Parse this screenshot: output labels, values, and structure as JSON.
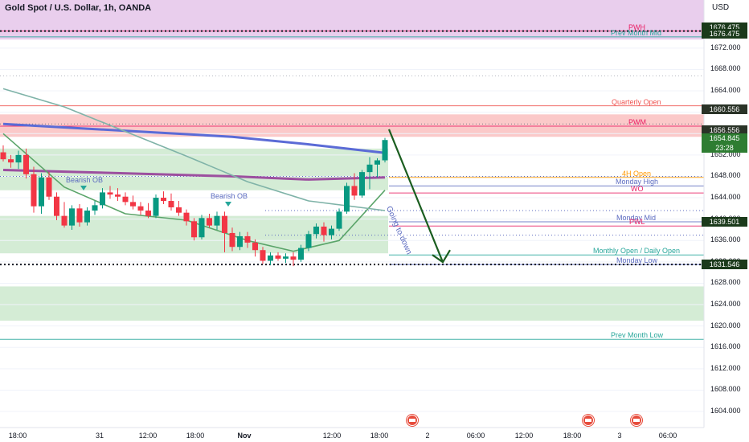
{
  "header": {
    "symbol_title": "Gold Spot / U.S. Dollar, 1h, OANDA",
    "currency": "USD"
  },
  "colors": {
    "bull_candle": "#089981",
    "bear_candle": "#f23645",
    "premium_zone": "#e1bee7",
    "supply_zone": "#f8a5a5",
    "demand_zone": "#b7dfb9",
    "ma_blue": "#5b6bd6",
    "ma_purple": "#9c4f9f",
    "ma_green": "#5aa469",
    "ma_teal": "#7fb3a8",
    "arrow": "#1b5e20",
    "accent_tag": "#1b5e20"
  },
  "y_axis": {
    "ticks": [
      "1672.000",
      "1668.000",
      "1664.000",
      "1660.000",
      "1656.000",
      "1652.000",
      "1648.000",
      "1644.000",
      "1640.000",
      "1636.000",
      "1632.000",
      "1628.000",
      "1624.000",
      "1620.000",
      "1616.000",
      "1612.000",
      "1608.000",
      "1604.000"
    ]
  },
  "x_axis": {
    "ticks": [
      "18:00",
      "31",
      "12:00",
      "18:00",
      "Nov",
      "12:00",
      "18:00",
      "2",
      "06:00",
      "12:00",
      "18:00",
      "3",
      "06:00"
    ]
  },
  "price_tags": [
    {
      "label": "1676.475",
      "kind": "dark"
    },
    {
      "label": "1676.475",
      "kind": "dark"
    },
    {
      "label": "1660.556",
      "kind": "dark"
    },
    {
      "label": "1656.556",
      "kind": "dark"
    },
    {
      "label": "1654.845",
      "kind": "green"
    },
    {
      "label": "23:28",
      "kind": "green"
    },
    {
      "label": "1639.501",
      "kind": "dark"
    },
    {
      "label": "1631.546",
      "kind": "dark"
    }
  ],
  "levels": [
    {
      "label": "PWH",
      "price": 1675.2,
      "color": "#e91e63"
    },
    {
      "label": "Prev Month Mid",
      "price": 1674.1,
      "color": "#26a69a"
    },
    {
      "label": "Quarterly Open",
      "price": 1661.2,
      "color": "#ef5350"
    },
    {
      "label": "PWM",
      "price": 1657.4,
      "color": "#e91e63"
    },
    {
      "label": "4H Open",
      "price": 1647.8,
      "color": "#ff9800"
    },
    {
      "label": "Monday High",
      "price": 1646.2,
      "color": "#5c6bc0"
    },
    {
      "label": "WO",
      "price": 1644.9,
      "color": "#e91e63"
    },
    {
      "label": "Monday Mid",
      "price": 1639.5,
      "color": "#5c6bc0"
    },
    {
      "label": "PWL",
      "price": 1638.7,
      "color": "#e91e63"
    },
    {
      "label": "Monthly Open / Daily Open",
      "price": 1633.3,
      "color": "#26a69a"
    },
    {
      "label": "Monday Low",
      "price": 1631.5,
      "color": "#5c6bc0"
    },
    {
      "label": "Prev Month Low",
      "price": 1617.5,
      "color": "#26a69a"
    }
  ],
  "annotations": {
    "bearish_ob_1": "Bearish OB",
    "bearish_ob_2": "Bearish OB",
    "arrow_text": "Going to down"
  },
  "chart_data": {
    "type": "candlestick",
    "title": "Gold Spot / U.S. Dollar, 1h, OANDA",
    "ylim": [
      1601,
      1681
    ],
    "candles": [
      [
        1652.5,
        1653.8,
        1650.8,
        1651.2
      ],
      [
        1651.2,
        1652.0,
        1649.6,
        1650.6
      ],
      [
        1650.6,
        1652.8,
        1649.4,
        1652.0
      ],
      [
        1652.0,
        1653.2,
        1647.6,
        1648.4
      ],
      [
        1648.4,
        1649.8,
        1641.2,
        1642.4
      ],
      [
        1642.4,
        1648.6,
        1641.0,
        1647.8
      ],
      [
        1647.8,
        1648.8,
        1643.6,
        1644.2
      ],
      [
        1644.2,
        1645.0,
        1639.8,
        1640.6
      ],
      [
        1640.6,
        1643.2,
        1638.4,
        1638.8
      ],
      [
        1638.8,
        1642.6,
        1638.0,
        1642.0
      ],
      [
        1642.0,
        1642.8,
        1638.6,
        1639.4
      ],
      [
        1639.4,
        1642.2,
        1638.8,
        1641.6
      ],
      [
        1641.6,
        1643.4,
        1640.8,
        1642.6
      ],
      [
        1642.6,
        1645.8,
        1642.0,
        1645.0
      ],
      [
        1645.0,
        1646.2,
        1643.8,
        1644.6
      ],
      [
        1644.6,
        1645.8,
        1643.4,
        1644.2
      ],
      [
        1644.2,
        1645.0,
        1642.6,
        1643.2
      ],
      [
        1643.2,
        1644.4,
        1641.8,
        1642.4
      ],
      [
        1642.4,
        1643.2,
        1640.8,
        1641.6
      ],
      [
        1641.6,
        1643.0,
        1640.2,
        1640.6
      ],
      [
        1640.6,
        1644.6,
        1640.2,
        1644.0
      ],
      [
        1644.0,
        1645.2,
        1642.8,
        1643.4
      ],
      [
        1643.4,
        1644.8,
        1641.6,
        1642.2
      ],
      [
        1642.2,
        1643.4,
        1640.6,
        1641.2
      ],
      [
        1641.2,
        1641.8,
        1638.8,
        1639.6
      ],
      [
        1639.6,
        1640.2,
        1636.0,
        1636.6
      ],
      [
        1636.6,
        1640.8,
        1636.2,
        1640.2
      ],
      [
        1640.2,
        1641.0,
        1638.4,
        1638.8
      ],
      [
        1638.8,
        1641.4,
        1638.0,
        1640.6
      ],
      [
        1640.6,
        1641.4,
        1633.8,
        1637.4
      ],
      [
        1637.4,
        1638.4,
        1634.0,
        1634.8
      ],
      [
        1634.8,
        1637.6,
        1634.2,
        1636.8
      ],
      [
        1636.8,
        1637.6,
        1634.6,
        1635.6
      ],
      [
        1635.6,
        1636.2,
        1633.0,
        1634.2
      ],
      [
        1634.2,
        1634.8,
        1631.6,
        1632.2
      ],
      [
        1632.2,
        1633.8,
        1631.4,
        1633.2
      ],
      [
        1633.2,
        1633.8,
        1632.2,
        1632.6
      ],
      [
        1632.6,
        1633.6,
        1631.8,
        1633.0
      ],
      [
        1633.0,
        1633.8,
        1631.2,
        1632.4
      ],
      [
        1632.4,
        1635.2,
        1632.0,
        1634.6
      ],
      [
        1634.6,
        1637.8,
        1634.0,
        1637.2
      ],
      [
        1637.2,
        1639.2,
        1636.4,
        1638.6
      ],
      [
        1638.6,
        1639.4,
        1635.8,
        1637.0
      ],
      [
        1637.0,
        1638.8,
        1636.2,
        1638.2
      ],
      [
        1638.2,
        1642.0,
        1637.8,
        1641.4
      ],
      [
        1641.4,
        1646.8,
        1641.0,
        1646.2
      ],
      [
        1646.2,
        1648.6,
        1643.6,
        1644.4
      ],
      [
        1644.4,
        1649.2,
        1644.0,
        1648.8
      ],
      [
        1648.8,
        1651.6,
        1645.6,
        1650.2
      ],
      [
        1650.2,
        1651.4,
        1647.8,
        1651.0
      ],
      [
        1651.0,
        1655.2,
        1650.6,
        1654.8
      ]
    ],
    "moving_averages": [
      {
        "name": "",
        "color": "#5b6bd6",
        "points": [
          [
            0,
            1657.8
          ],
          [
            10,
            1657.0
          ],
          [
            20,
            1656.2
          ],
          [
            30,
            1655.4
          ],
          [
            40,
            1654.0
          ],
          [
            50,
            1652.4
          ]
        ]
      },
      {
        "name": "",
        "color": "#9c4f9f",
        "points": [
          [
            0,
            1649.2
          ],
          [
            10,
            1648.8
          ],
          [
            20,
            1648.4
          ],
          [
            30,
            1648.0
          ],
          [
            40,
            1647.4
          ],
          [
            50,
            1647.8
          ]
        ]
      },
      {
        "name": "",
        "color": "#5aa469",
        "points": [
          [
            0,
            1656.0
          ],
          [
            8,
            1646.0
          ],
          [
            16,
            1641.0
          ],
          [
            24,
            1639.8
          ],
          [
            32,
            1636.0
          ],
          [
            38,
            1634.0
          ],
          [
            44,
            1636.0
          ],
          [
            50,
            1645.4
          ]
        ]
      },
      {
        "name": "",
        "color": "#7fb3a8",
        "points": [
          [
            0,
            1664.4
          ],
          [
            8,
            1661.0
          ],
          [
            16,
            1656.4
          ],
          [
            24,
            1651.8
          ],
          [
            32,
            1647.0
          ],
          [
            40,
            1643.4
          ],
          [
            50,
            1641.6
          ]
        ]
      }
    ],
    "zones": [
      {
        "kind": "premium",
        "from": 1673.6,
        "to": 1681
      },
      {
        "kind": "supply",
        "from": 1655.4,
        "to": 1659.6
      },
      {
        "kind": "demand",
        "from": 1645.4,
        "to": 1653.2
      },
      {
        "kind": "demand",
        "from": 1633.6,
        "to": 1640.6
      },
      {
        "kind": "demand",
        "from": 1621.0,
        "to": 1627.4
      }
    ],
    "projection": {
      "from": 1656.8,
      "to": 1631.5
    }
  }
}
